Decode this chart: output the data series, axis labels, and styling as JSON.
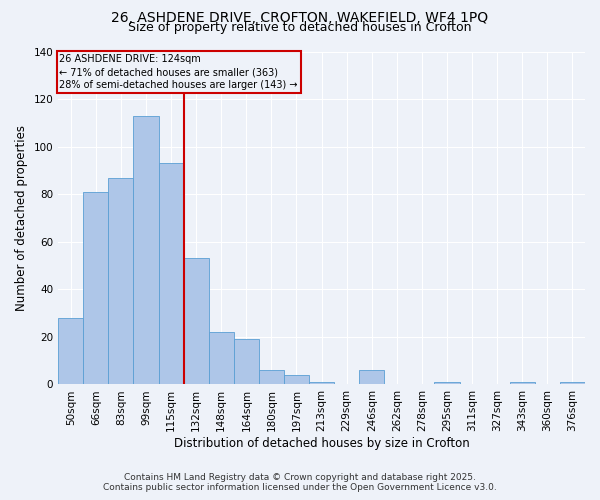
{
  "title1": "26, ASHDENE DRIVE, CROFTON, WAKEFIELD, WF4 1PQ",
  "title2": "Size of property relative to detached houses in Crofton",
  "xlabel": "Distribution of detached houses by size in Crofton",
  "ylabel": "Number of detached properties",
  "categories": [
    "50sqm",
    "66sqm",
    "83sqm",
    "99sqm",
    "115sqm",
    "132sqm",
    "148sqm",
    "164sqm",
    "180sqm",
    "197sqm",
    "213sqm",
    "229sqm",
    "246sqm",
    "262sqm",
    "278sqm",
    "295sqm",
    "311sqm",
    "327sqm",
    "343sqm",
    "360sqm",
    "376sqm"
  ],
  "values": [
    28,
    81,
    87,
    113,
    93,
    53,
    22,
    19,
    6,
    4,
    1,
    0,
    6,
    0,
    0,
    1,
    0,
    0,
    1,
    0,
    1
  ],
  "bar_color": "#aec6e8",
  "bar_edge_color": "#5a9fd4",
  "vline_color": "#cc0000",
  "annotation_lines": [
    "26 ASHDENE DRIVE: 124sqm",
    "← 71% of detached houses are smaller (363)",
    "28% of semi-detached houses are larger (143) →"
  ],
  "annotation_box_color": "#cc0000",
  "footer1": "Contains HM Land Registry data © Crown copyright and database right 2025.",
  "footer2": "Contains public sector information licensed under the Open Government Licence v3.0.",
  "bg_color": "#eef2f9",
  "ylim": [
    0,
    140
  ],
  "title_fontsize": 10,
  "subtitle_fontsize": 9,
  "tick_fontsize": 7.5,
  "label_fontsize": 8.5,
  "footer_fontsize": 6.5
}
